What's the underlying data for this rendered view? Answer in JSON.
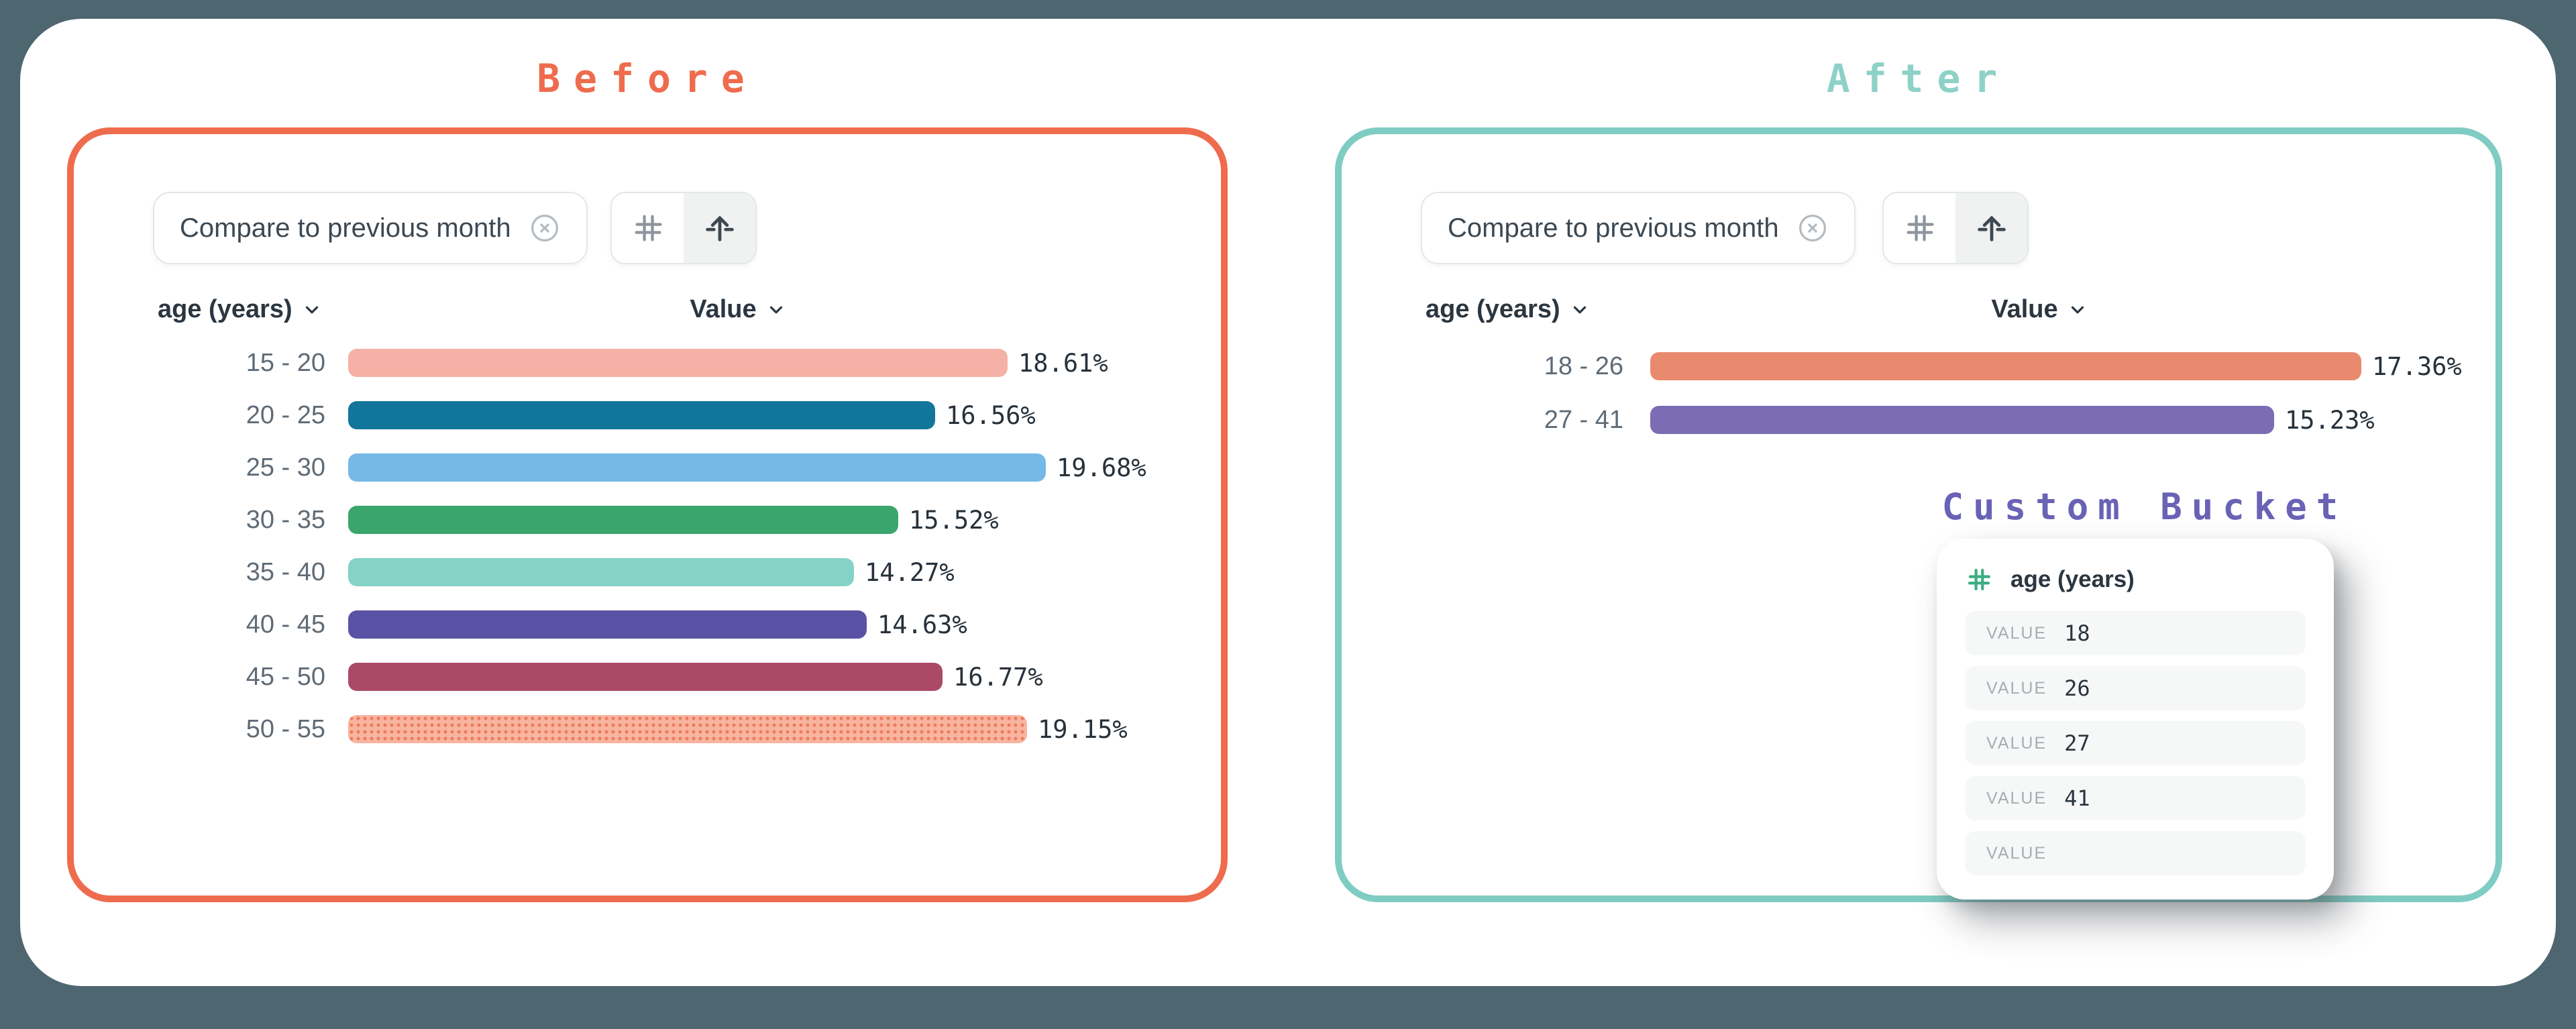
{
  "page": {
    "background": "#4D6670",
    "card_background": "#FFFFFF"
  },
  "panels": {
    "before": {
      "title": "Before",
      "accent": "#EE6C4D",
      "chip_label": "Compare to previous month",
      "col_dimension": "age (years)",
      "col_measure": "Value"
    },
    "after": {
      "title": "After",
      "accent": "#7FCCC3",
      "chip_label": "Compare to previous month",
      "col_dimension": "age (years)",
      "col_measure": "Value"
    }
  },
  "chart_data": [
    {
      "type": "bar",
      "orientation": "horizontal",
      "title": "Before",
      "xlabel": "Value",
      "ylabel": "age (years)",
      "categories": [
        "15 - 20",
        "20 - 25",
        "25 - 30",
        "30 - 35",
        "35 - 40",
        "40 - 45",
        "45 - 50",
        "50 - 55"
      ],
      "values": [
        18.61,
        16.56,
        19.68,
        15.52,
        14.27,
        14.63,
        16.77,
        19.15
      ],
      "value_labels": [
        "18.61%",
        "16.56%",
        "19.68%",
        "15.52%",
        "14.27%",
        "14.63%",
        "16.77%",
        "19.15%"
      ],
      "colors": [
        "#F5B1A5",
        "#12769B",
        "#75B9E7",
        "#3AA56C",
        "#85D3C6",
        "#5A52A5",
        "#AB4A67",
        "#F8B49E"
      ],
      "xlim": [
        0,
        19.68
      ],
      "grid": false,
      "legend": "none"
    },
    {
      "type": "bar",
      "orientation": "horizontal",
      "title": "After",
      "xlabel": "Value",
      "ylabel": "age (years)",
      "categories": [
        "18 - 26",
        "27 - 41"
      ],
      "values": [
        17.36,
        15.23
      ],
      "value_labels": [
        "17.36%",
        "15.23%"
      ],
      "colors": [
        "#E98A6F",
        "#7B6CB4"
      ],
      "xlim": [
        0,
        17.36
      ],
      "grid": false,
      "legend": "none"
    }
  ],
  "custom_bucket": {
    "title": "Custom Bucket",
    "accent": "#6A62B5",
    "field": "age (years)",
    "rows": [
      {
        "label": "VALUE",
        "value": "18"
      },
      {
        "label": "VALUE",
        "value": "26"
      },
      {
        "label": "VALUE",
        "value": "27"
      },
      {
        "label": "VALUE",
        "value": "41"
      },
      {
        "label": "VALUE",
        "value": ""
      }
    ]
  }
}
